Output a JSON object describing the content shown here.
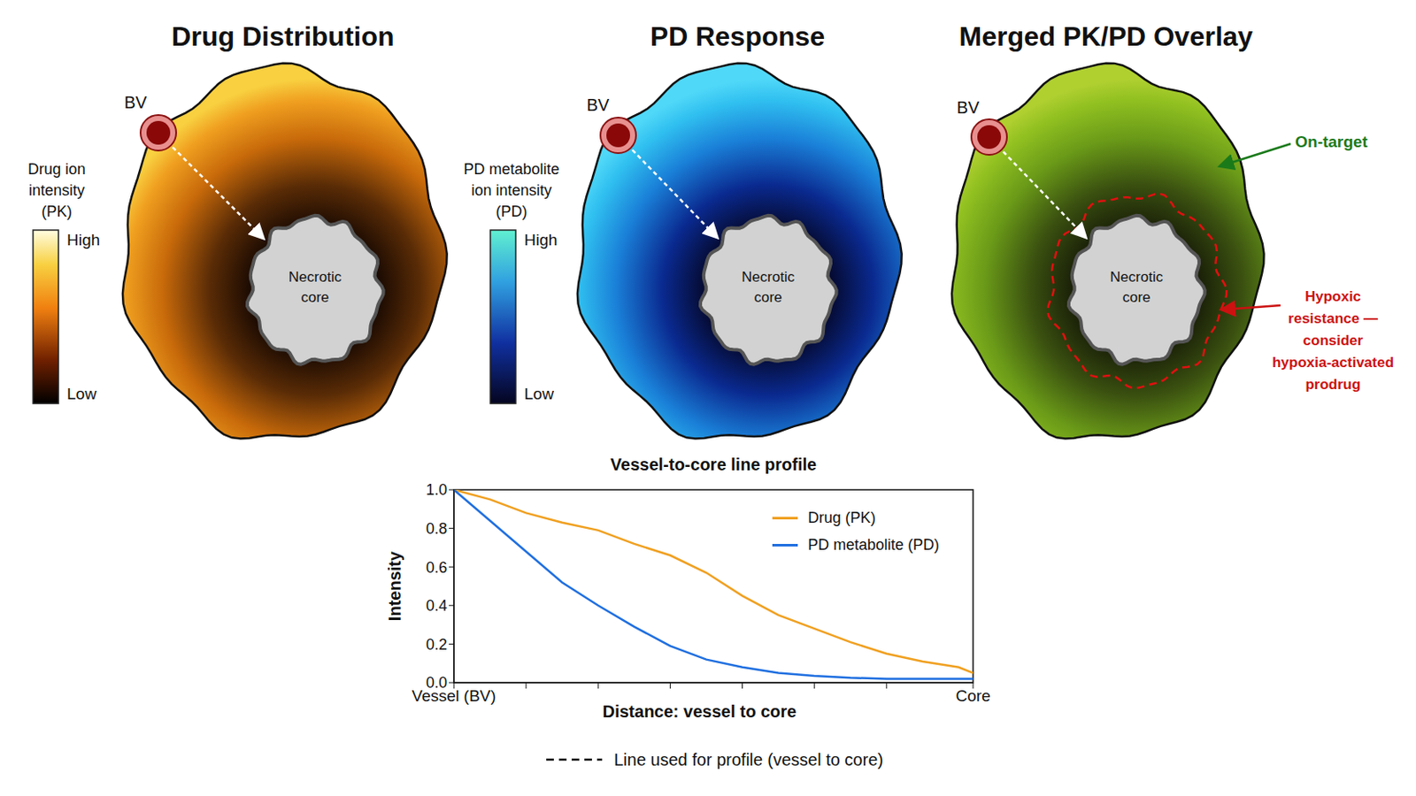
{
  "chart_data": {
    "type": "line",
    "title": "Vessel-to-core line profile",
    "x_label": "Distance: vessel to core",
    "y_label": "Intensity",
    "x": [
      0,
      0.5,
      1,
      1.5,
      2,
      2.5,
      3,
      3.5,
      4,
      4.5,
      5,
      5.5,
      6,
      6.5,
      7,
      7.2
    ],
    "xlim": [
      0,
      7.2
    ],
    "xticks": [
      {
        "value": 0,
        "label": "Vessel (BV)"
      },
      {
        "value": 1,
        "label": null
      },
      {
        "value": 2,
        "label": null
      },
      {
        "value": 3,
        "label": null
      },
      {
        "value": 4,
        "label": null
      },
      {
        "value": 5,
        "label": null
      },
      {
        "value": 6,
        "label": null
      },
      {
        "value": 7.2,
        "label": "Core"
      }
    ],
    "ylim": [
      0,
      1
    ],
    "yticks": [
      {
        "value": 0,
        "label": "0.0"
      },
      0.2,
      0.4,
      0.6,
      0.8,
      {
        "value": 1,
        "label": "1.0"
      }
    ],
    "grid": false,
    "legend": "upper right",
    "series": [
      {
        "name": "Drug (PK)",
        "color": "#f0a020",
        "values": [
          1.0,
          0.95,
          0.88,
          0.83,
          0.79,
          0.72,
          0.66,
          0.57,
          0.45,
          0.35,
          0.28,
          0.21,
          0.15,
          0.11,
          0.08,
          0.05
        ]
      },
      {
        "name": "PD metabolite (PD)",
        "color": "#1f6fe0",
        "values": [
          1.0,
          0.84,
          0.68,
          0.52,
          0.4,
          0.29,
          0.19,
          0.12,
          0.08,
          0.05,
          0.035,
          0.025,
          0.02,
          0.02,
          0.02,
          0.02
        ]
      }
    ]
  },
  "panels": [
    {
      "title": "Drug Distribution",
      "vessel_label": "BV",
      "core_label": [
        "Necrotic",
        "core"
      ],
      "colorbar": {
        "label": [
          "Drug ion",
          "intensity",
          "(PK)"
        ],
        "high": "High",
        "low": "Low"
      }
    },
    {
      "title": "PD Response",
      "vessel_label": "BV",
      "core_label": [
        "Necrotic",
        "core"
      ],
      "colorbar": {
        "label": [
          "PD metabolite",
          "ion intensity",
          "(PD)"
        ],
        "high": "High",
        "low": "Low"
      }
    },
    {
      "title": "Merged PK/PD Overlay",
      "vessel_label": "BV",
      "core_label": [
        "Necrotic",
        "core"
      ],
      "annotations": [
        {
          "text": [
            "On-target"
          ],
          "color": "#1a7a1a"
        },
        {
          "text": [
            "Hypoxic",
            "resistance —",
            "consider",
            "hypoxia-activated",
            "prodrug"
          ],
          "color": "#cc1111"
        }
      ]
    }
  ],
  "profile_line_key": "Line used for profile (vessel to core)"
}
